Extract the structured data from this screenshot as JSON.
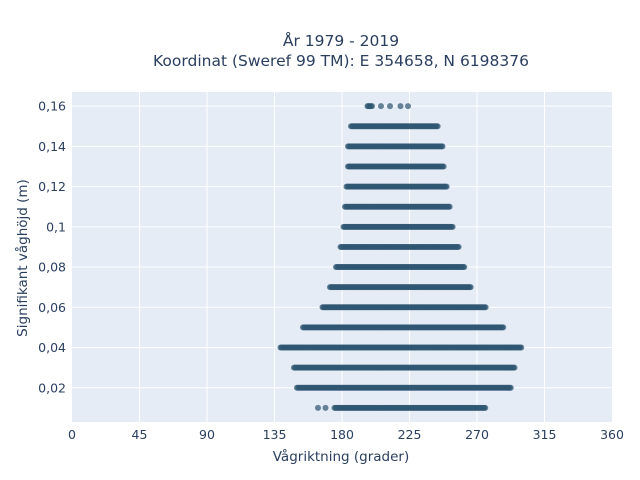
{
  "chart_data": {
    "type": "scatter",
    "title": [
      "År 1979 - 2019",
      "Koordinat (Sweref 99 TM): E 354658, N 6198376"
    ],
    "xlabel": "Vågriktning (grader)",
    "ylabel": "Signifikant våghöjd (m)",
    "xlim": [
      0,
      360
    ],
    "ylim": [
      0.003,
      0.167
    ],
    "x_ticks": [
      0,
      45,
      90,
      135,
      180,
      225,
      270,
      315,
      360
    ],
    "x_tick_labels": [
      "0",
      "45",
      "90",
      "135",
      "180",
      "225",
      "270",
      "315",
      "360"
    ],
    "y_ticks": [
      0.02,
      0.04,
      0.06,
      0.08,
      0.1,
      0.12,
      0.14,
      0.16
    ],
    "y_tick_labels": [
      "0,02",
      "0,04",
      "0,06",
      "0,08",
      "0,1",
      "0,12",
      "0,14",
      "0,16"
    ],
    "grid": true,
    "colors": {
      "plot_bg": "#e5ecf6",
      "grid": "#ffffff",
      "marker": "#2f5672",
      "text": "#2a3f5f"
    },
    "bands": [
      {
        "y": 0.01,
        "x_min": 175,
        "x_max": 276,
        "sparse_x": [
          164,
          169
        ]
      },
      {
        "y": 0.02,
        "x_min": 150,
        "x_max": 293,
        "sparse_x": []
      },
      {
        "y": 0.03,
        "x_min": 148,
        "x_max": 295,
        "sparse_x": []
      },
      {
        "y": 0.04,
        "x_min": 139,
        "x_max": 300,
        "sparse_x": []
      },
      {
        "y": 0.05,
        "x_min": 154,
        "x_max": 288,
        "sparse_x": []
      },
      {
        "y": 0.06,
        "x_min": 167,
        "x_max": 276,
        "sparse_x": []
      },
      {
        "y": 0.07,
        "x_min": 172,
        "x_max": 266,
        "sparse_x": []
      },
      {
        "y": 0.08,
        "x_min": 176,
        "x_max": 262,
        "sparse_x": []
      },
      {
        "y": 0.09,
        "x_min": 179,
        "x_max": 258,
        "sparse_x": []
      },
      {
        "y": 0.1,
        "x_min": 181,
        "x_max": 254,
        "sparse_x": []
      },
      {
        "y": 0.11,
        "x_min": 182,
        "x_max": 252,
        "sparse_x": []
      },
      {
        "y": 0.12,
        "x_min": 183,
        "x_max": 250,
        "sparse_x": []
      },
      {
        "y": 0.13,
        "x_min": 184,
        "x_max": 248,
        "sparse_x": []
      },
      {
        "y": 0.14,
        "x_min": 184,
        "x_max": 247,
        "sparse_x": []
      },
      {
        "y": 0.15,
        "x_min": 186,
        "x_max": 244,
        "sparse_x": []
      },
      {
        "y": 0.16,
        "x_min": 197,
        "x_max": 200,
        "sparse_x": [
          206,
          212,
          219,
          224
        ]
      }
    ]
  }
}
